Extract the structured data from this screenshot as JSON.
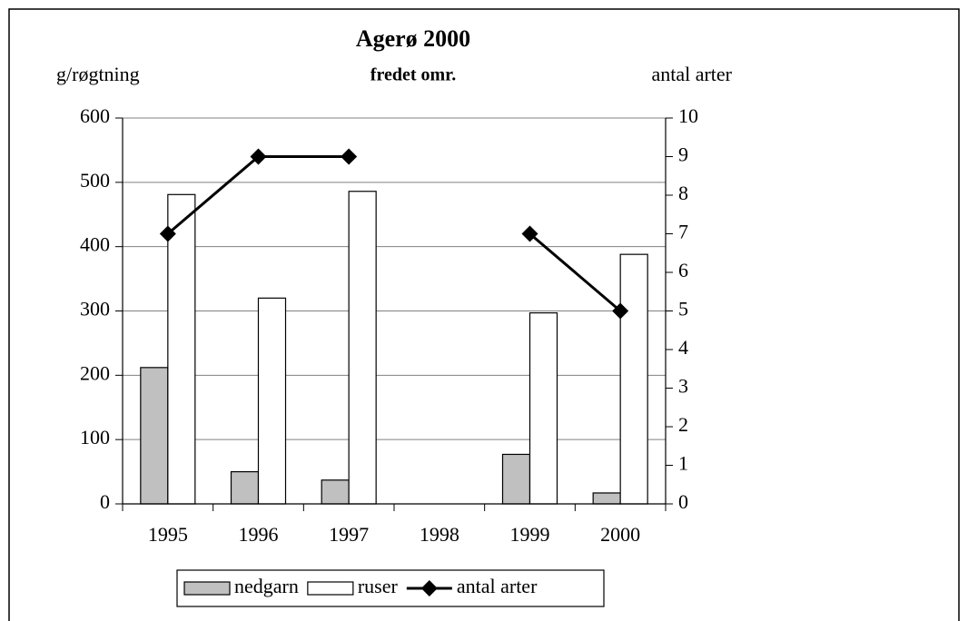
{
  "chart_data": {
    "type": "bar",
    "title": "Agerø 2000",
    "subtitle": "fredet omr.",
    "y_label": "g/røgtning",
    "y2_label": "antal arter",
    "categories": [
      "1995",
      "1996",
      "1997",
      "1998",
      "1999",
      "2000"
    ],
    "series": [
      {
        "name": "nedgarn",
        "color": "#c0c0c0",
        "values": [
          212,
          50,
          37,
          null,
          77,
          17
        ]
      },
      {
        "name": "ruser",
        "color": "#ffffff",
        "values": [
          481,
          320,
          486,
          null,
          297,
          388
        ]
      },
      {
        "name": "antal arter",
        "color": "#000000",
        "type": "line",
        "axis": "y2",
        "values": [
          7,
          9,
          9,
          null,
          7,
          5
        ]
      }
    ],
    "ylim": [
      0,
      600
    ],
    "yticks": [
      0,
      100,
      200,
      300,
      400,
      500,
      600
    ],
    "y2lim": [
      0,
      10
    ],
    "y2ticks": [
      0,
      1,
      2,
      3,
      4,
      5,
      6,
      7,
      8,
      9,
      10
    ],
    "grid": true,
    "legend": "bottom"
  }
}
